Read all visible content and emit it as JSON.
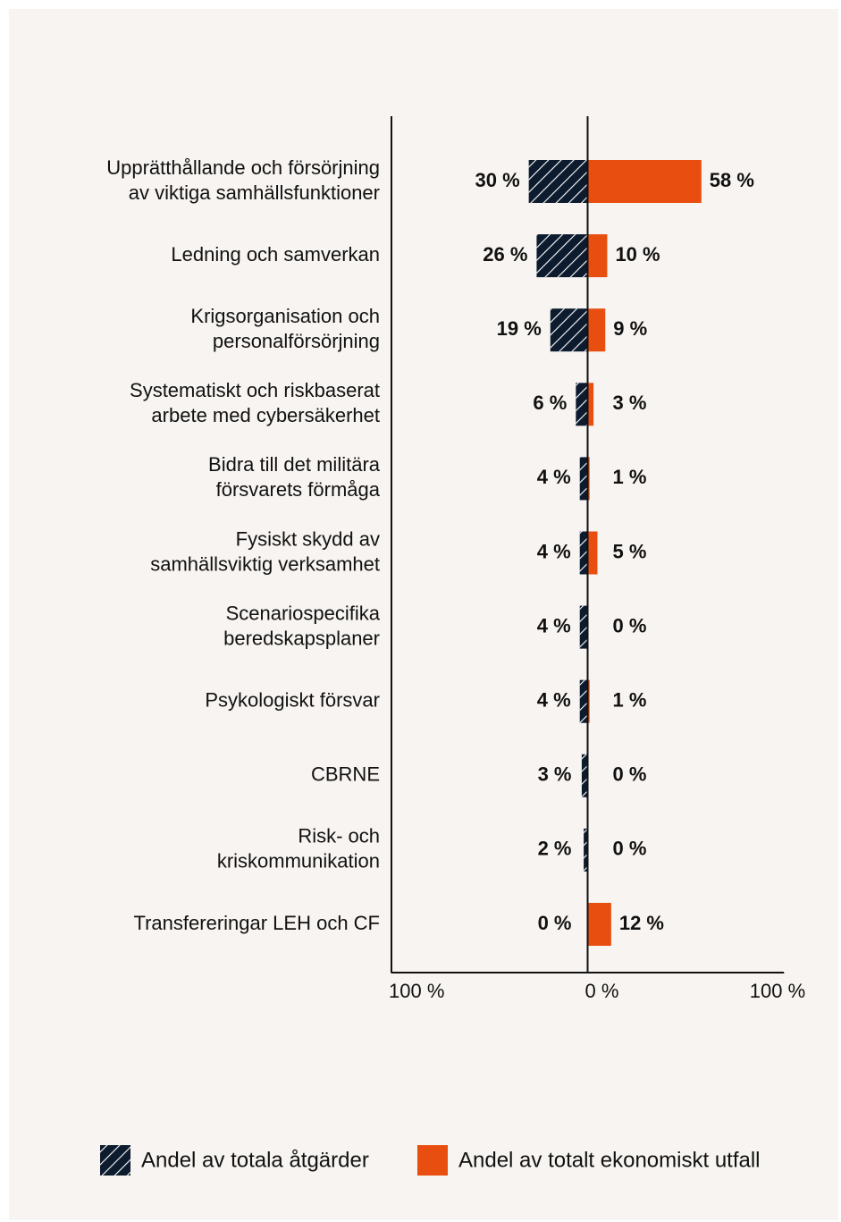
{
  "chart_data": {
    "type": "diverging-bar",
    "categories": [
      [
        "Upprätthållande och försörjning",
        "av viktiga samhällsfunktioner"
      ],
      [
        "Ledning och samverkan"
      ],
      [
        "Krigsorganisation och",
        "personalförsörjning"
      ],
      [
        "Systematiskt och riskbaserat",
        "arbete med cybersäkerhet"
      ],
      [
        "Bidra till det militära",
        "försvarets förmåga"
      ],
      [
        "Fysiskt skydd av",
        "samhällsviktig verksamhet"
      ],
      [
        "Scenariospecifika",
        "beredskapsplaner"
      ],
      [
        "Psykologiskt försvar"
      ],
      [
        "CBRNE"
      ],
      [
        "Risk- och",
        "kriskommunikation"
      ],
      [
        "Transfereringar LEH och CF"
      ]
    ],
    "series": [
      {
        "name": "Andel av totala åtgärder",
        "color": "#0d1b2e",
        "pattern": "hatch",
        "side": "left",
        "values": [
          30,
          26,
          19,
          6,
          4,
          4,
          4,
          4,
          3,
          2,
          0
        ],
        "value_labels": [
          "30 %",
          "26 %",
          "19 %",
          "6 %",
          "4 %",
          "4 %",
          "4 %",
          "4 %",
          "3 %",
          "2 %",
          "0 %"
        ]
      },
      {
        "name": "Andel av totalt ekonomiskt utfall",
        "color": "#e84e0f",
        "side": "right",
        "values": [
          58,
          10,
          9,
          3,
          1,
          5,
          0,
          1,
          0,
          0,
          12
        ],
        "value_labels": [
          "58 %",
          "10 %",
          "9 %",
          "3 %",
          "1 %",
          "5 %",
          "0 %",
          "1 %",
          "0 %",
          "0 %",
          "12 %"
        ]
      }
    ],
    "xlim": [
      -100,
      100
    ],
    "xticks": [
      {
        "value": -100,
        "label": "100 %"
      },
      {
        "value": 0,
        "label": "0 %"
      },
      {
        "value": 100,
        "label": "100 %"
      }
    ],
    "legend": "bottom"
  }
}
